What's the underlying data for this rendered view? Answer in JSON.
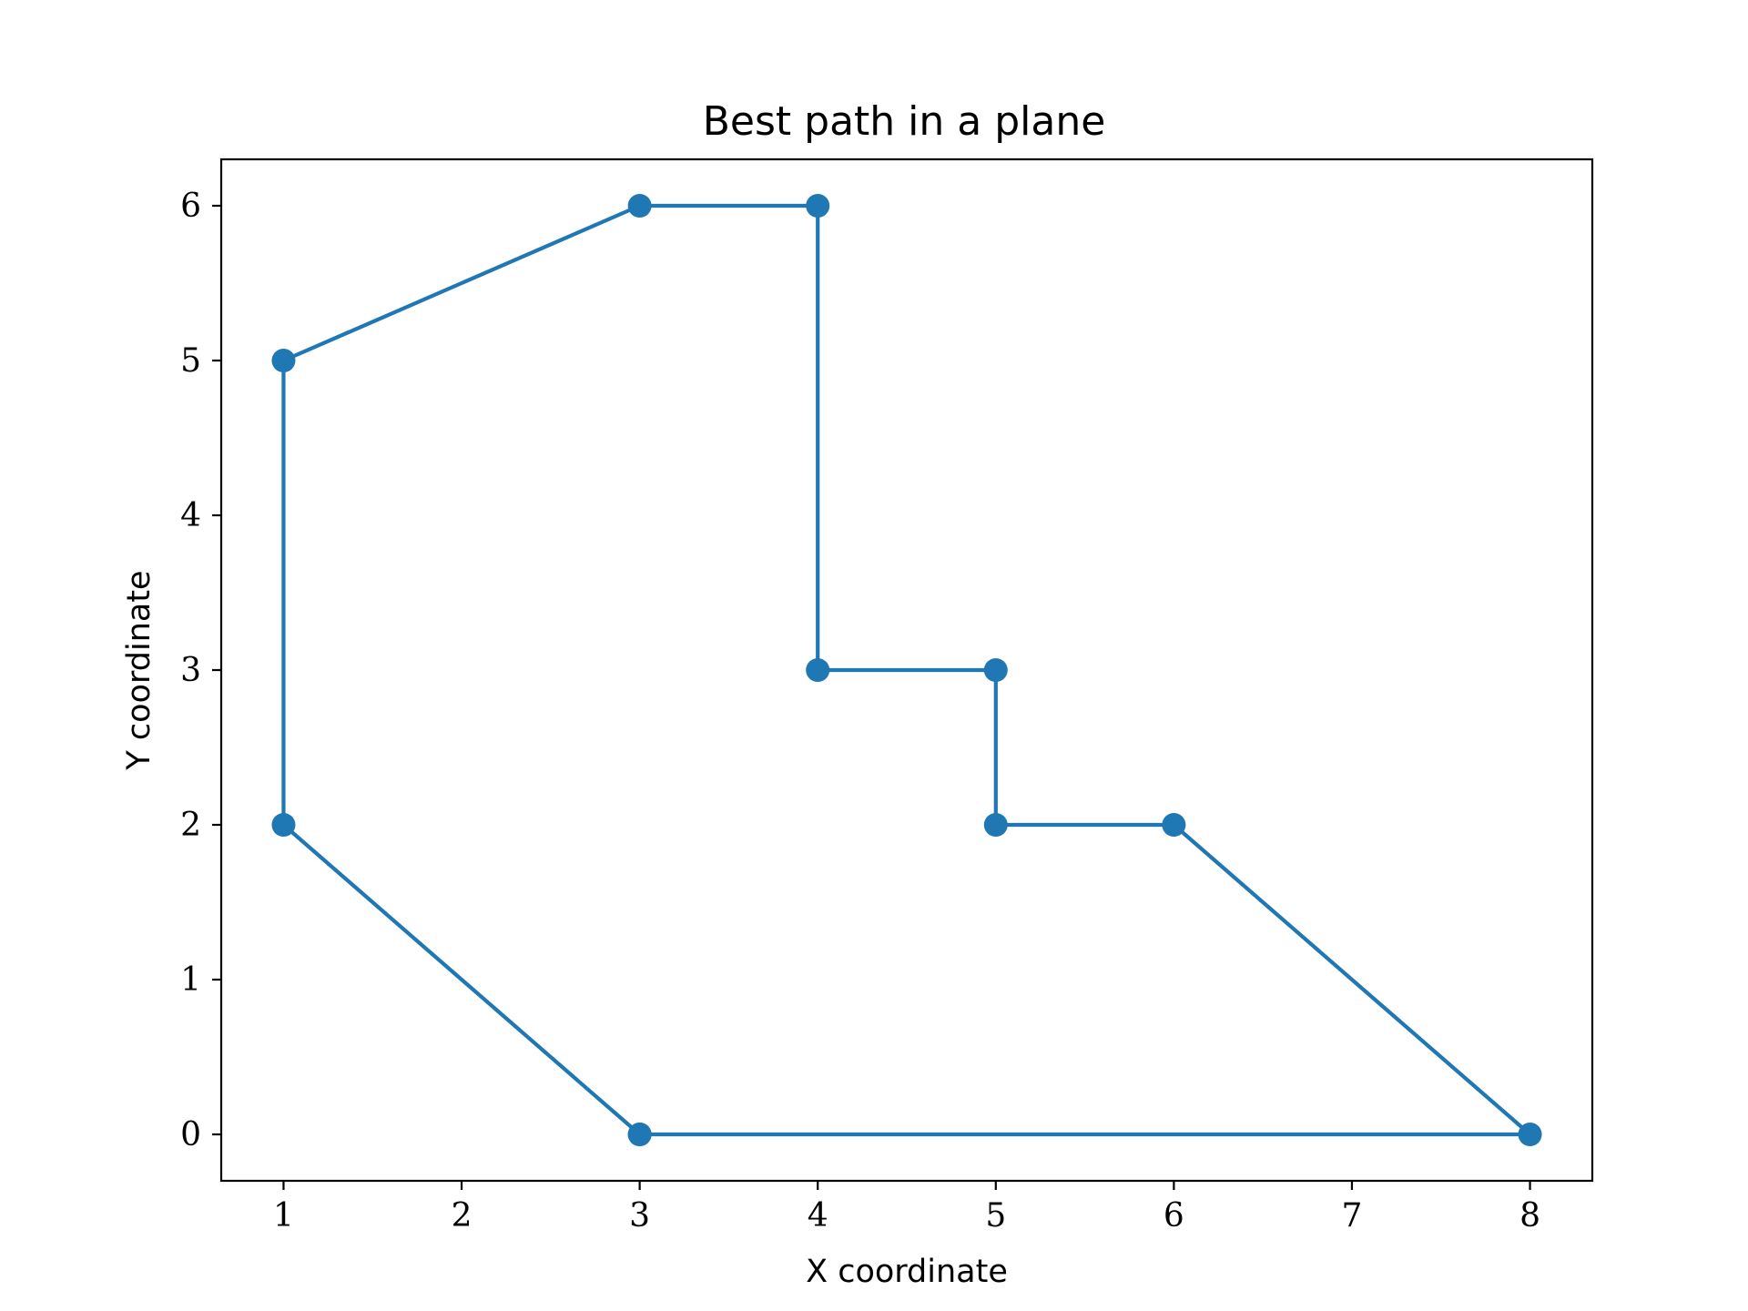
{
  "chart_data": {
    "type": "line",
    "title": "Best path in a plane",
    "xlabel": "X coordinate",
    "ylabel": "Y coordinate",
    "xlim": [
      0.65,
      8.35
    ],
    "ylim": [
      -0.3,
      6.3
    ],
    "x_ticks": [
      1,
      2,
      3,
      4,
      5,
      6,
      7,
      8
    ],
    "y_ticks": [
      0,
      1,
      2,
      3,
      4,
      5,
      6
    ],
    "grid": false,
    "legend": "none",
    "series": [
      {
        "color": "#1f77b4",
        "marker": "circle",
        "x": [
          3,
          8,
          6,
          5,
          5,
          4,
          4,
          3,
          1,
          1,
          3
        ],
        "y": [
          0,
          0,
          2,
          2,
          3,
          3,
          6,
          6,
          5,
          2,
          0
        ]
      }
    ]
  }
}
